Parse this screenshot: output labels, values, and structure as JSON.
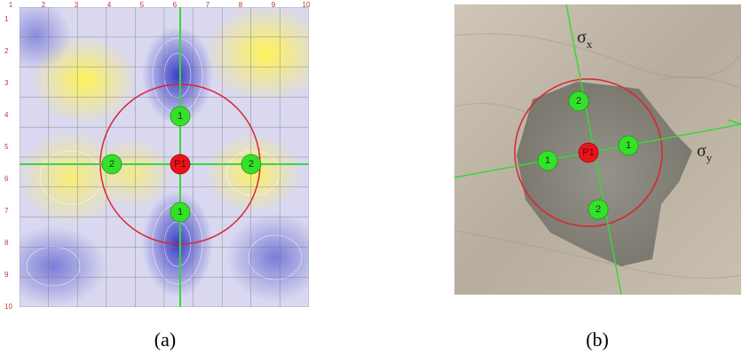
{
  "panels": [
    {
      "caption": "(a)",
      "x_labels": [
        "1",
        "2",
        "3",
        "4",
        "5",
        "6",
        "7",
        "8",
        "9",
        "10"
      ],
      "y_labels": [
        "1",
        "2",
        "3",
        "4",
        "5",
        "6",
        "7",
        "8",
        "9",
        "10"
      ],
      "markers": [
        {
          "label": "P1"
        },
        {
          "label": "1"
        },
        {
          "label": "1"
        },
        {
          "label": "2"
        },
        {
          "label": "2"
        }
      ]
    },
    {
      "caption": "(b)",
      "axes": [
        {
          "symbol": "σ",
          "subscript": "x"
        },
        {
          "symbol": "σ",
          "subscript": "y"
        }
      ],
      "markers": [
        {
          "label": "P1"
        },
        {
          "label": "2"
        },
        {
          "label": "1"
        },
        {
          "label": "1"
        },
        {
          "label": "2"
        }
      ]
    }
  ]
}
